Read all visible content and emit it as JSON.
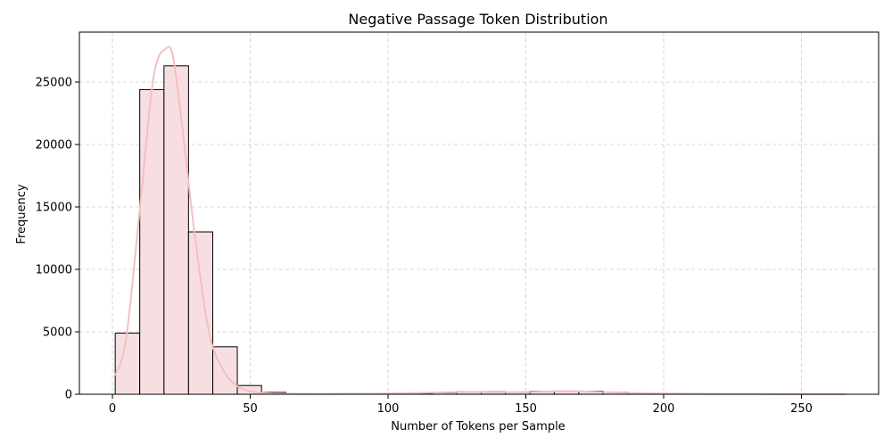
{
  "chart_data": {
    "type": "bar",
    "title": "Negative Passage Token Distribution",
    "xlabel": "Number of Tokens per Sample",
    "ylabel": "Frequency",
    "xlim": [
      -12,
      278
    ],
    "ylim": [
      0,
      29000
    ],
    "xticks": [
      0,
      50,
      100,
      150,
      200,
      250
    ],
    "yticks": [
      0,
      5000,
      10000,
      15000,
      20000,
      25000
    ],
    "grid": true,
    "bin_edges": [
      1.0,
      9.9,
      18.7,
      27.6,
      36.4,
      45.3,
      54.1,
      63.0,
      71.8,
      80.7,
      89.5,
      98.4,
      107.2,
      116.1,
      124.9,
      133.8,
      142.6,
      151.5,
      160.3,
      169.2,
      178.0,
      186.9,
      195.7,
      204.6,
      213.4,
      222.3,
      231.1,
      240.0,
      248.8,
      257.7,
      266.5
    ],
    "values": [
      4900,
      24400,
      26300,
      13000,
      3800,
      700,
      150,
      40,
      20,
      15,
      20,
      40,
      80,
      120,
      200,
      200,
      170,
      240,
      220,
      250,
      160,
      90,
      60,
      40,
      30,
      15,
      10,
      8,
      5,
      5
    ],
    "kde": {
      "x": [
        1,
        5,
        10,
        15,
        19.5,
        22,
        25,
        30,
        35,
        40,
        45,
        50,
        55,
        60,
        70,
        80,
        100,
        120,
        130,
        140,
        150,
        160,
        165,
        170,
        180,
        190,
        200,
        220,
        240,
        266
      ],
      "y": [
        1500,
        4500,
        15000,
        25500,
        27700,
        27000,
        22000,
        12500,
        5000,
        2000,
        700,
        250,
        100,
        50,
        30,
        30,
        60,
        150,
        180,
        160,
        180,
        230,
        250,
        230,
        160,
        100,
        60,
        30,
        15,
        10
      ]
    }
  }
}
